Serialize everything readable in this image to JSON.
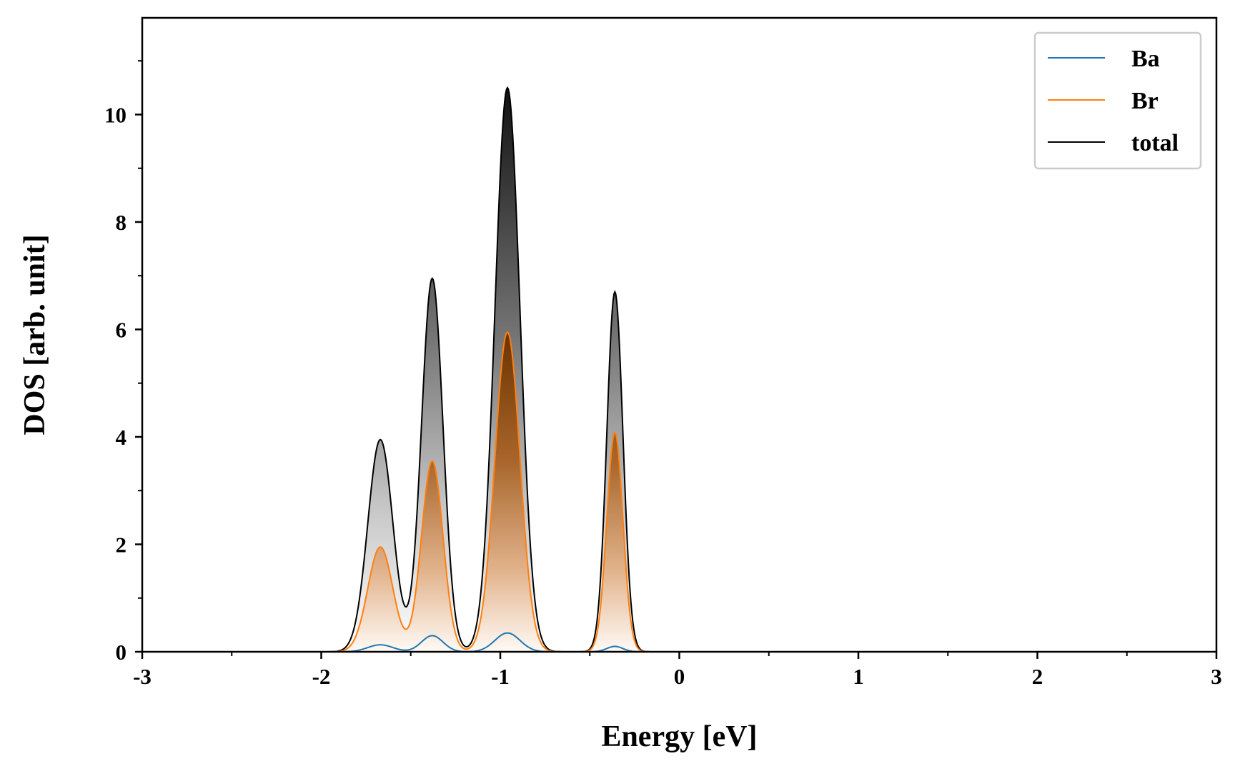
{
  "chart_data": {
    "type": "area",
    "title": "",
    "xlabel": "Energy [eV]",
    "ylabel": "DOS [arb. unit]",
    "xlim": [
      -3,
      3
    ],
    "ylim": [
      0,
      11.8
    ],
    "x_ticks": [
      -3,
      -2,
      -1,
      0,
      1,
      2,
      3
    ],
    "x_tick_labels": [
      "-3",
      "-2",
      "-1",
      "0",
      "1",
      "2",
      "3"
    ],
    "x_minor_step": 0.5,
    "y_ticks": [
      0,
      2,
      4,
      6,
      8,
      10
    ],
    "y_tick_labels": [
      "0",
      "2",
      "4",
      "6",
      "8",
      "10"
    ],
    "y_minor_step": 1,
    "grid": false,
    "legend_position": "top-right",
    "series": [
      {
        "name": "Ba",
        "color": "#1f77b4",
        "peaks": [
          {
            "center": -1.67,
            "height": 0.13,
            "sigma": 0.07
          },
          {
            "center": -1.38,
            "height": 0.3,
            "sigma": 0.06
          },
          {
            "center": -0.96,
            "height": 0.35,
            "sigma": 0.07
          },
          {
            "center": -0.36,
            "height": 0.1,
            "sigma": 0.045
          }
        ]
      },
      {
        "name": "Br",
        "color": "#ff7f0e",
        "fill": "gradient",
        "peaks": [
          {
            "center": -1.67,
            "height": 1.95,
            "sigma": 0.07
          },
          {
            "center": -1.38,
            "height": 3.55,
            "sigma": 0.06
          },
          {
            "center": -0.96,
            "height": 5.95,
            "sigma": 0.07
          },
          {
            "center": -0.36,
            "height": 4.08,
            "sigma": 0.045
          }
        ]
      },
      {
        "name": "total",
        "color": "#000000",
        "fill": "gradient",
        "peaks": [
          {
            "center": -1.67,
            "height": 3.95,
            "sigma": 0.07
          },
          {
            "center": -1.38,
            "height": 6.95,
            "sigma": 0.06
          },
          {
            "center": -0.96,
            "height": 10.5,
            "sigma": 0.07
          },
          {
            "center": -0.36,
            "height": 6.7,
            "sigma": 0.045
          }
        ]
      }
    ]
  }
}
